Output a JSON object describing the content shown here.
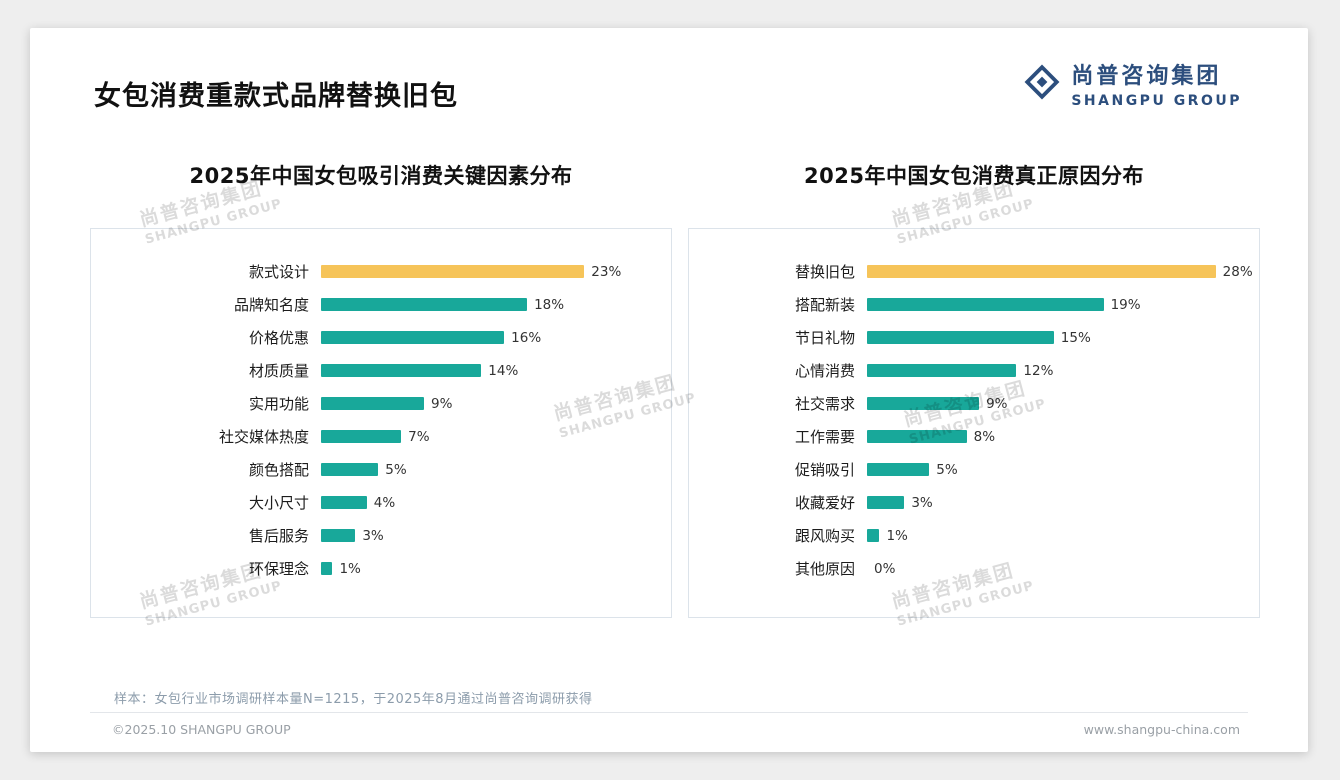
{
  "page": {
    "title": "女包消费重款式品牌替换旧包",
    "note": "样本：女包行业市场调研样本量N=1215，于2025年8月通过尚普咨询调研获得",
    "footer_left": "©2025.10 SHANGPU GROUP",
    "footer_right": "www.shangpu-china.com"
  },
  "logo": {
    "zh": "尚普咨询集团",
    "en": "SHANGPU GROUP"
  },
  "watermark": {
    "line1": "尚普咨询集团",
    "line2": "SHANGPU GROUP"
  },
  "colors": {
    "bar": "#18A89A",
    "highlight": "#F6C459",
    "logo_blue": "#2C4E7D"
  },
  "chart_data": [
    {
      "type": "bar",
      "orientation": "horizontal",
      "title": "2025年中国女包吸引消费关键因素分布",
      "categories": [
        "款式设计",
        "品牌知名度",
        "价格优惠",
        "材质质量",
        "实用功能",
        "社交媒体热度",
        "颜色搭配",
        "大小尺寸",
        "售后服务",
        "环保理念"
      ],
      "values": [
        23,
        18,
        16,
        14,
        9,
        7,
        5,
        4,
        3,
        1
      ],
      "value_suffix": "%",
      "highlight_index": 0,
      "axis_max": 29,
      "grid": false,
      "legend": false
    },
    {
      "type": "bar",
      "orientation": "horizontal",
      "title": "2025年中国女包消费真正原因分布",
      "categories": [
        "替换旧包",
        "搭配新装",
        "节日礼物",
        "心情消费",
        "社交需求",
        "工作需要",
        "促销吸引",
        "收藏爱好",
        "跟风购买",
        "其他原因"
      ],
      "values": [
        28,
        19,
        15,
        12,
        9,
        8,
        5,
        3,
        1,
        0
      ],
      "value_suffix": "%",
      "highlight_index": 0,
      "axis_max": 31,
      "grid": false,
      "legend": false
    }
  ]
}
